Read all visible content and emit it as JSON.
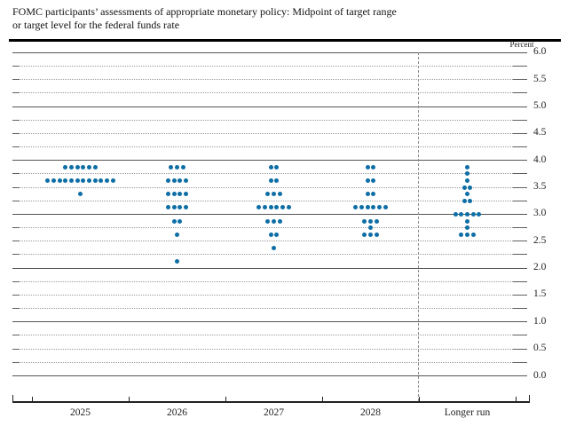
{
  "header": {
    "title_line1": "FOMC participants’ assessments of appropriate monetary policy: Midpoint of target range",
    "title_line2": "or target level for the federal funds rate"
  },
  "chart_data": {
    "type": "scatter",
    "subtype": "fomc-dot-plot",
    "title": "FOMC participants’ assessments of appropriate monetary policy: Midpoint of target range or target level for the federal funds rate",
    "unit_label": "Percent",
    "ylim": [
      0.0,
      6.0
    ],
    "ytick_step": 0.5,
    "gridline_step": 0.25,
    "ytick_labels": [
      "6.0",
      "5.5",
      "5.0",
      "4.5",
      "4.0",
      "3.5",
      "3.0",
      "2.5",
      "2.0",
      "1.5",
      "1.0",
      "0.5",
      "0.0"
    ],
    "categories": [
      "2025",
      "2026",
      "2027",
      "2028",
      "Longer run"
    ],
    "series": [
      {
        "category": "2025",
        "dots": [
          {
            "rate": 3.875,
            "count": 6
          },
          {
            "rate": 3.625,
            "count": 12
          },
          {
            "rate": 3.375,
            "count": 1
          }
        ]
      },
      {
        "category": "2026",
        "dots": [
          {
            "rate": 3.875,
            "count": 3
          },
          {
            "rate": 3.625,
            "count": 4
          },
          {
            "rate": 3.375,
            "count": 4
          },
          {
            "rate": 3.125,
            "count": 4
          },
          {
            "rate": 2.875,
            "count": 2
          },
          {
            "rate": 2.625,
            "count": 1
          },
          {
            "rate": 2.125,
            "count": 1
          }
        ]
      },
      {
        "category": "2027",
        "dots": [
          {
            "rate": 3.875,
            "count": 2
          },
          {
            "rate": 3.625,
            "count": 2
          },
          {
            "rate": 3.375,
            "count": 3
          },
          {
            "rate": 3.125,
            "count": 6
          },
          {
            "rate": 2.875,
            "count": 3
          },
          {
            "rate": 2.625,
            "count": 2
          },
          {
            "rate": 2.375,
            "count": 1
          }
        ]
      },
      {
        "category": "2028",
        "dots": [
          {
            "rate": 3.875,
            "count": 2
          },
          {
            "rate": 3.625,
            "count": 2
          },
          {
            "rate": 3.375,
            "count": 2
          },
          {
            "rate": 3.125,
            "count": 6
          },
          {
            "rate": 2.875,
            "count": 3
          },
          {
            "rate": 2.75,
            "count": 1
          },
          {
            "rate": 2.625,
            "count": 3
          }
        ]
      },
      {
        "category": "Longer run",
        "dots": [
          {
            "rate": 3.875,
            "count": 1
          },
          {
            "rate": 3.75,
            "count": 1
          },
          {
            "rate": 3.625,
            "count": 1
          },
          {
            "rate": 3.5,
            "count": 2
          },
          {
            "rate": 3.375,
            "count": 1
          },
          {
            "rate": 3.25,
            "count": 2
          },
          {
            "rate": 3.0,
            "count": 5
          },
          {
            "rate": 2.875,
            "count": 1
          },
          {
            "rate": 2.75,
            "count": 1
          },
          {
            "rate": 2.625,
            "count": 3
          }
        ]
      }
    ],
    "dot_color": "#0d6ea6",
    "grid": true,
    "legend_position": "none"
  }
}
